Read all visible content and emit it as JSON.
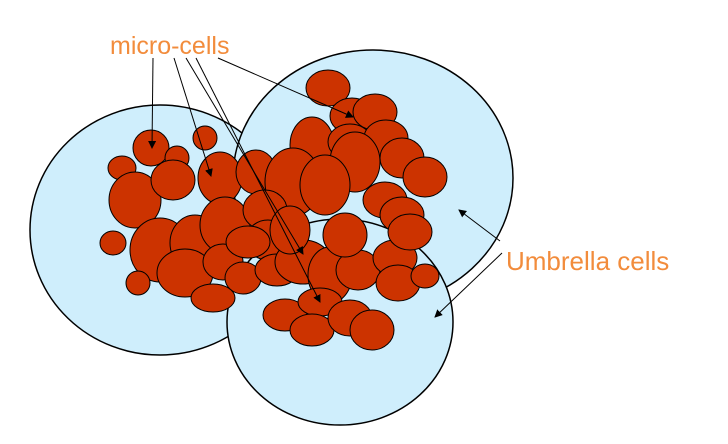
{
  "labels": {
    "micro_cells": "micro-cells",
    "umbrella_cells": "Umbrella cells"
  },
  "colors": {
    "umbrella_fill": "#cfeefc",
    "micro_fill": "#cc3300",
    "label": "#f28c3c"
  }
}
